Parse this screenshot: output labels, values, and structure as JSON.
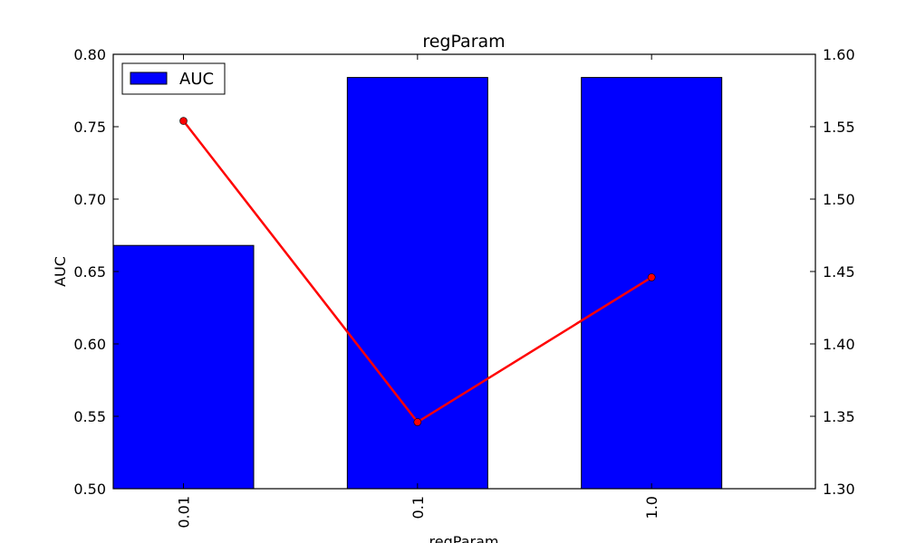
{
  "chart_data": {
    "type": "bar",
    "title": "regParam",
    "xlabel": "regParam",
    "ylabel": "AUC",
    "categories": [
      "0.01",
      "0.1",
      "1.0"
    ],
    "series": [
      {
        "name": "AUC",
        "type": "bar",
        "axis": "left",
        "color": "#0000ff",
        "values": [
          0.668,
          0.784,
          0.784
        ]
      },
      {
        "name": "",
        "type": "line",
        "axis": "right",
        "color": "#ff0000",
        "values": [
          1.554,
          1.346,
          1.446
        ]
      }
    ],
    "ylim": [
      0.5,
      0.8
    ],
    "yticks": [
      "0.50",
      "0.55",
      "0.60",
      "0.65",
      "0.70",
      "0.75",
      "0.80"
    ],
    "y2lim": [
      1.3,
      1.6
    ],
    "y2ticks": [
      "1.30",
      "1.35",
      "1.40",
      "1.45",
      "1.50",
      "1.55",
      "1.60"
    ],
    "legend": {
      "entries": [
        "AUC"
      ],
      "placement": "top-left"
    },
    "grid": false
  }
}
